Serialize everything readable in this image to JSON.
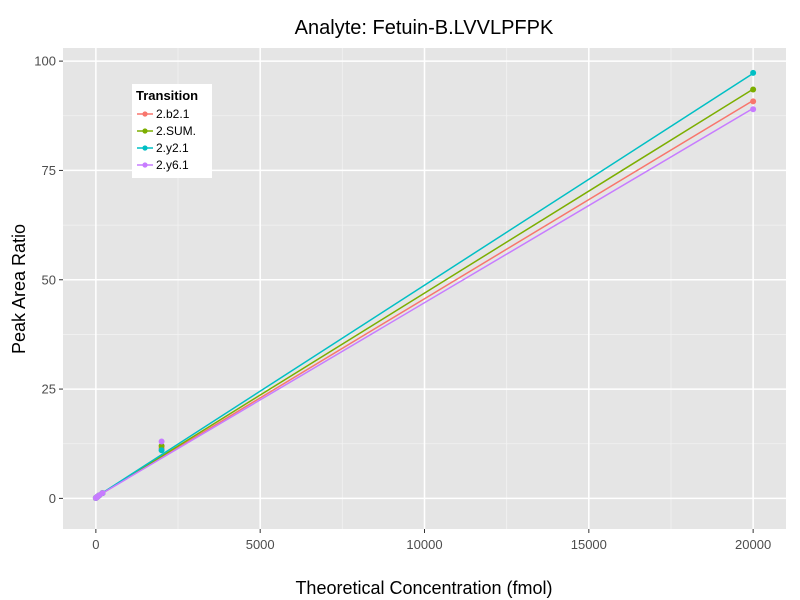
{
  "chart_data": {
    "type": "line",
    "title": "Analyte: Fetuin-B.LVVLPFPK",
    "xlabel": "Theoretical Concentration (fmol)",
    "ylabel": "Peak Area Ratio",
    "xlim": [
      -1000,
      21000
    ],
    "ylim": [
      -7,
      103
    ],
    "xticks": [
      0,
      5000,
      10000,
      15000,
      20000
    ],
    "xtick_labels": [
      "0",
      "5000",
      "10000",
      "15000",
      "20000"
    ],
    "yticks": [
      0,
      25,
      50,
      75,
      100
    ],
    "ytick_labels": [
      "0",
      "25",
      "50",
      "75",
      "100"
    ],
    "legend": {
      "title": "Transition",
      "position": "top-left"
    },
    "x": [
      0,
      20,
      50,
      100,
      200,
      2000,
      20000
    ],
    "series": [
      {
        "name": "2.b2.1",
        "color": "#F8766D",
        "fit": [
          0.3,
          0.004535
        ],
        "values": [
          0.1,
          0.2,
          0.4,
          0.7,
          1.2,
          11.5,
          90.8
        ]
      },
      {
        "name": "2.SUM.",
        "color": "#7CAE00",
        "fit": [
          0.3,
          0.004665
        ],
        "values": [
          0.1,
          0.2,
          0.4,
          0.7,
          1.2,
          12.0,
          93.5
        ]
      },
      {
        "name": "2.y2.1",
        "color": "#00BFC4",
        "fit": [
          0.3,
          0.004845
        ],
        "values": [
          0.1,
          0.2,
          0.4,
          0.7,
          1.2,
          11.0,
          97.3
        ]
      },
      {
        "name": "2.y6.1",
        "color": "#C77CFF",
        "fit": [
          0.3,
          0.004445
        ],
        "values": [
          0.1,
          0.2,
          0.4,
          0.7,
          1.2,
          13.0,
          89.0
        ]
      }
    ],
    "colors": {
      "panel": "#E5E5E5",
      "grid_major": "#FFFFFF",
      "grid_minor": "#F2F2F2"
    }
  }
}
